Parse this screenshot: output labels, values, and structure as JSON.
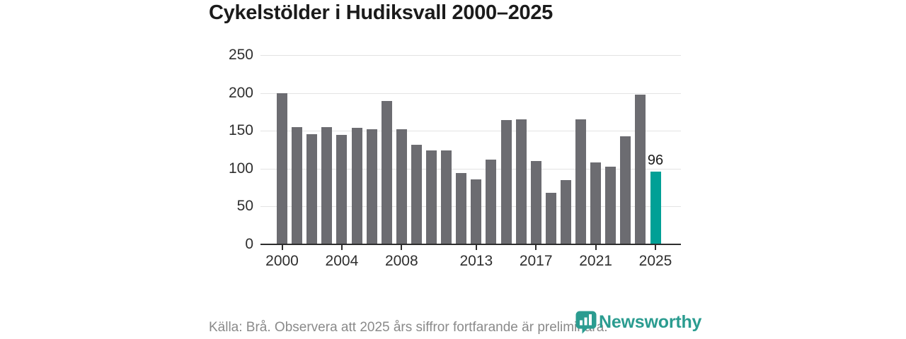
{
  "title": "Cykelstölder i Hudiksvall 2000–2025",
  "chart_data": {
    "type": "bar",
    "title": "Cykelstölder i Hudiksvall 2000–2025",
    "x": [
      2000,
      2001,
      2002,
      2003,
      2004,
      2005,
      2006,
      2007,
      2008,
      2009,
      2010,
      2011,
      2012,
      2013,
      2014,
      2015,
      2016,
      2017,
      2018,
      2019,
      2020,
      2021,
      2022,
      2023,
      2024,
      2025
    ],
    "values": [
      200,
      155,
      146,
      155,
      145,
      154,
      152,
      189,
      152,
      132,
      124,
      124,
      94,
      86,
      112,
      164,
      165,
      110,
      68,
      85,
      165,
      108,
      103,
      143,
      198,
      96
    ],
    "highlight_x": 2025,
    "highlight_label": "96",
    "xlabel": "",
    "ylabel": "",
    "ylim": [
      0,
      250
    ],
    "yticks": [
      0,
      50,
      100,
      150,
      200,
      250
    ],
    "xticks": [
      2000,
      2004,
      2008,
      2013,
      2017,
      2021,
      2025
    ],
    "grid": true,
    "legend": false,
    "bar_color": "#6c6c71",
    "highlight_color": "#00a096",
    "grid_color": "#e3e3e3",
    "axis_color": "#2d2d2d"
  },
  "footer": {
    "source_text": "Källa: Brå. Observera att 2025 års siffror fortfarande är preliminära."
  },
  "logo": {
    "text": "Newsworthy",
    "color": "#2b9c90",
    "icon": "newsworthy-barchart-bubble-icon"
  }
}
